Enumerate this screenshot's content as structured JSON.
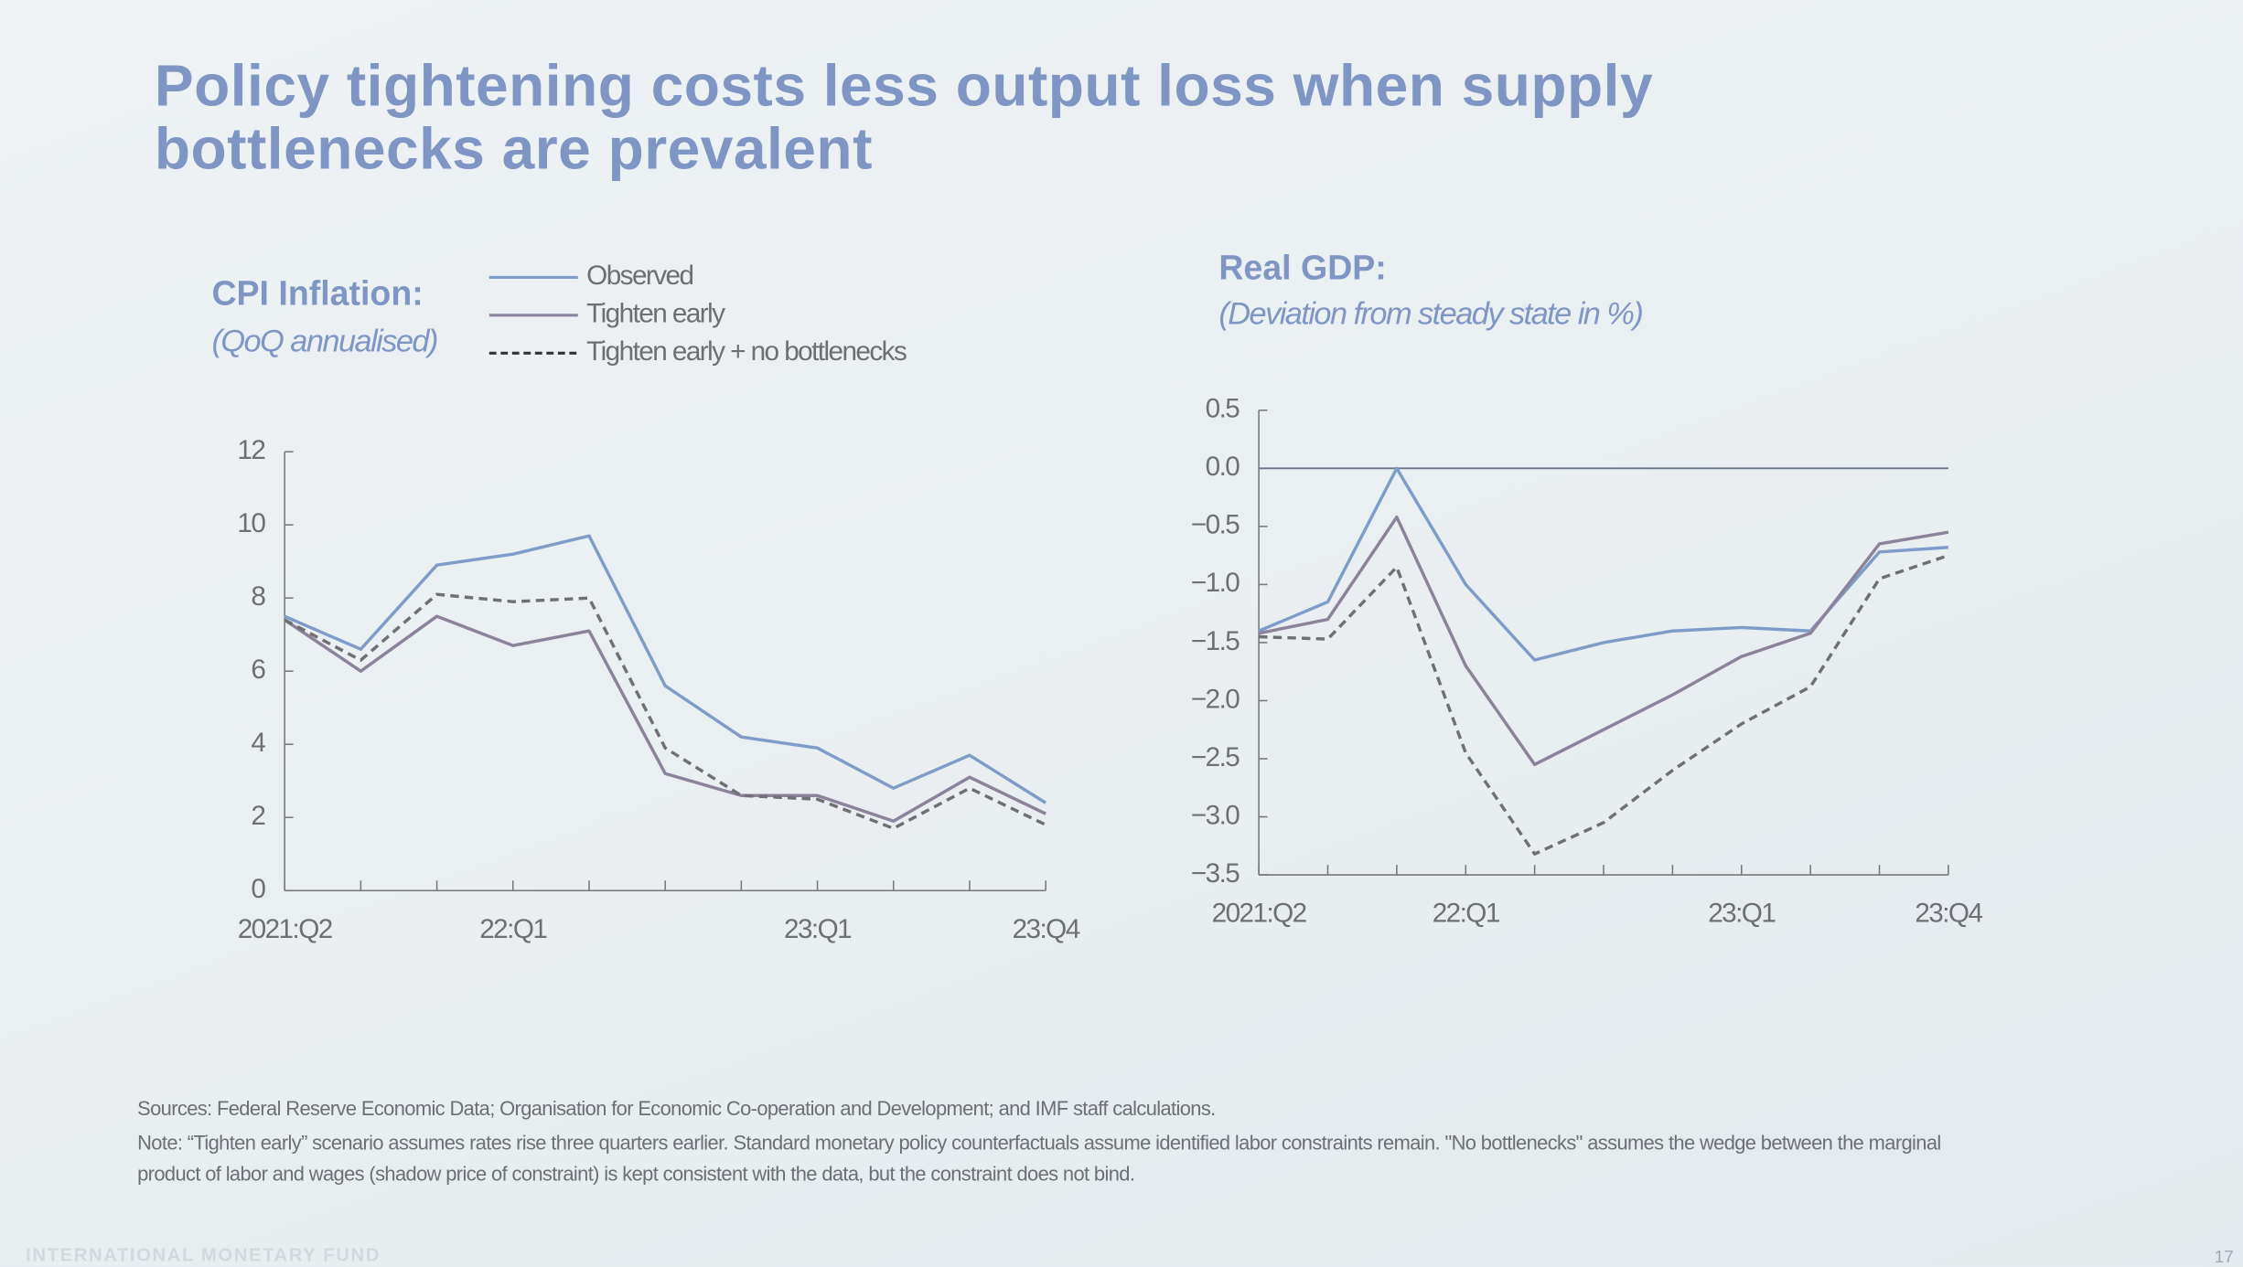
{
  "header": {
    "title": "Policy tightening costs less output loss when supply bottlenecks are prevalent"
  },
  "chart_data": [
    {
      "type": "line",
      "title": "CPI Inflation:",
      "subtitle": "(QoQ annualised)",
      "categories": [
        "2021:Q2",
        null,
        null,
        "22:Q1",
        null,
        null,
        null,
        "23:Q1",
        null,
        null,
        "23:Q4"
      ],
      "series": [
        {
          "name": "Observed",
          "color": "#7f9cc8",
          "style": "solid",
          "values": [
            7.5,
            6.6,
            8.9,
            9.2,
            9.7,
            5.6,
            4.2,
            3.9,
            2.8,
            3.7,
            2.4
          ]
        },
        {
          "name": "Tighten early",
          "color": "#8c8299",
          "style": "solid",
          "values": [
            7.4,
            6.0,
            7.5,
            6.7,
            7.1,
            3.2,
            2.6,
            2.6,
            1.9,
            3.1,
            2.1
          ]
        },
        {
          "name": "Tighten early + no bottlenecks",
          "color": "#6f6f74",
          "style": "dashed",
          "values": [
            7.4,
            6.3,
            8.1,
            7.9,
            8.0,
            3.9,
            2.6,
            2.5,
            1.7,
            2.8,
            1.8
          ]
        }
      ],
      "ylim": [
        0,
        12
      ],
      "yticks": [
        0,
        2,
        4,
        6,
        8,
        10,
        12
      ]
    },
    {
      "type": "line",
      "title": "Real GDP:",
      "subtitle": "(Deviation from steady state in %)",
      "categories": [
        "2021:Q2",
        null,
        null,
        "22:Q1",
        null,
        null,
        null,
        "23:Q1",
        null,
        null,
        "23:Q4"
      ],
      "series": [
        {
          "color": "#7f9cc8",
          "style": "solid",
          "values": [
            -1.4,
            -1.15,
            0.0,
            -1.0,
            -1.65,
            -1.5,
            -1.4,
            -1.37,
            -1.4,
            -0.72,
            -0.68
          ]
        },
        {
          "color": "#8c8299",
          "style": "solid",
          "values": [
            -1.42,
            -1.3,
            -0.42,
            -1.7,
            -2.55,
            -2.25,
            -1.95,
            -1.62,
            -1.42,
            -0.65,
            -0.55
          ]
        },
        {
          "color": "#6f6f74",
          "style": "dashed",
          "values": [
            -1.45,
            -1.47,
            -0.85,
            -2.45,
            -3.32,
            -3.05,
            -2.6,
            -2.2,
            -1.88,
            -0.95,
            -0.75
          ]
        }
      ],
      "ylim": [
        -3.5,
        0.5
      ],
      "yticks": [
        {
          "value": -3.5,
          "label": "−3.5"
        },
        {
          "value": -3,
          "label": "−3.0"
        },
        {
          "value": -2.5,
          "label": "−2.5"
        },
        {
          "value": -2,
          "label": "−2.0"
        },
        {
          "value": -1.5,
          "label": "−1.5"
        },
        {
          "value": -1,
          "label": "−1.0"
        },
        {
          "value": -0.5,
          "label": "−0.5"
        },
        {
          "value": 0,
          "label": "0.0"
        },
        0.5
      ],
      "zeroline": true
    }
  ],
  "footer": {
    "sources": "Sources: Federal Reserve Economic Data; Organisation for Economic Co-operation and Development; and IMF staff calculations.",
    "note": "Note: “Tighten early” scenario assumes rates rise three quarters earlier. Standard monetary policy counterfactuals assume identified labor constraints remain. \"No bottlenecks\" assumes the wedge between the marginal product of labor and wages (shadow price of constraint) is kept consistent with the data, but the constraint does not bind.",
    "organization": "INTERNATIONAL MONETARY FUND",
    "page": "17"
  }
}
